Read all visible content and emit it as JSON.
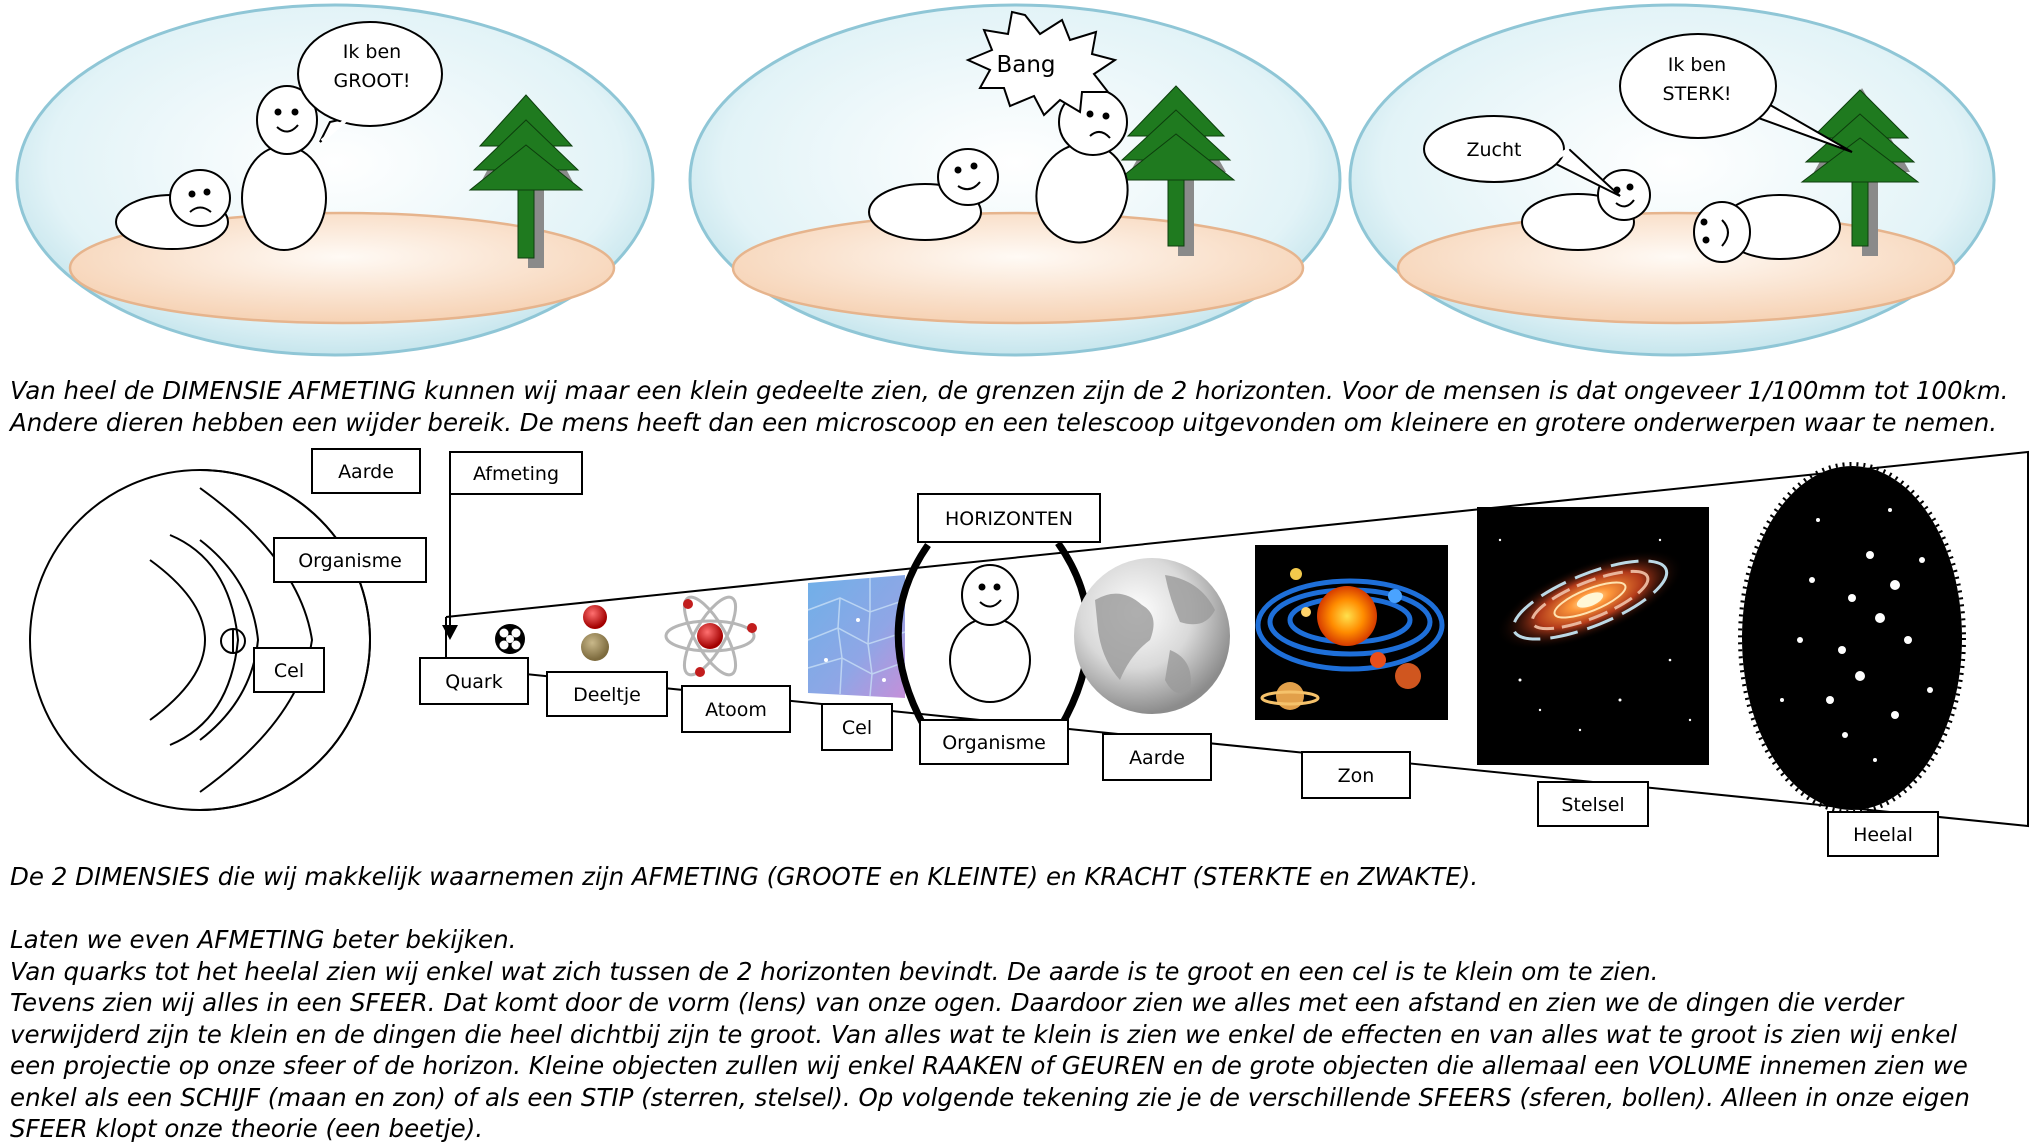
{
  "comic": {
    "panel1": {
      "speech": [
        "Ik ben",
        "GROOT!"
      ]
    },
    "panel2": {
      "shout": "Bang"
    },
    "panel3": {
      "speech": [
        "Ik ben",
        "STERK!"
      ],
      "sigh": "Zucht"
    }
  },
  "paragraph1": [
    "Van heel de DIMENSIE AFMETING kunnen wij maar een klein gedeelte zien, de grenzen zijn de 2 horizonten. Voor de mensen is dat ongeveer 1/100mm tot 100km.",
    "Andere dieren hebben een wijder bereik. De mens heeft dan een microscoop en een telescoop uitgevonden om kleinere en grotere onderwerpen waar te nemen."
  ],
  "diagram": {
    "sphere_labels": {
      "aarde": "Aarde",
      "organisme": "Organisme",
      "cel": "Cel"
    },
    "afmeting": "Afmeting",
    "horizonten": "HORIZONTEN",
    "scale": {
      "quark": "Quark",
      "deeltje": "Deeltje",
      "atoom": "Atoom",
      "cel": "Cel",
      "organisme": "Organisme",
      "aarde": "Aarde",
      "zon": "Zon",
      "stelsel": "Stelsel",
      "heelal": "Heelal"
    },
    "colors": {
      "tree": "#1f7a1f",
      "sky": "#cfeaf0",
      "ground": "#fbe3cf",
      "sun": "#ff7a00",
      "orbit": "#1e6fd9"
    }
  },
  "paragraph2": "De 2 DIMENSIES die wij makkelijk waarnemen zijn AFMETING (GROOTE en KLEINTE) en KRACHT (STERKTE en ZWAKTE).",
  "paragraph3": [
    "Laten we even AFMETING beter bekijken.",
    "Van quarks tot het heelal zien wij enkel wat zich tussen de 2 horizonten bevindt. De aarde is te groot en een cel is te klein om te zien.",
    "Tevens zien wij alles in een SFEER. Dat komt door de vorm (lens) van onze ogen. Daardoor zien we alles met een afstand en zien we de dingen die verder",
    "verwijderd zijn te klein en de dingen die heel dichtbij zijn te groot. Van alles wat te klein is zien we enkel de effecten en van alles wat te groot is zien wij enkel",
    "een projectie op onze sfeer of de horizon. Kleine objecten zullen wij enkel RAAKEN of GEUREN en de grote objecten die allemaal een VOLUME innemen zien we",
    "enkel als een SCHIJF (maan en zon) of als een STIP (sterren, stelsel). Op volgende tekening zie je de verschillende SFEERS (sferen, bollen). Alleen in onze eigen",
    "SFEER klopt onze theorie (een beetje)."
  ]
}
